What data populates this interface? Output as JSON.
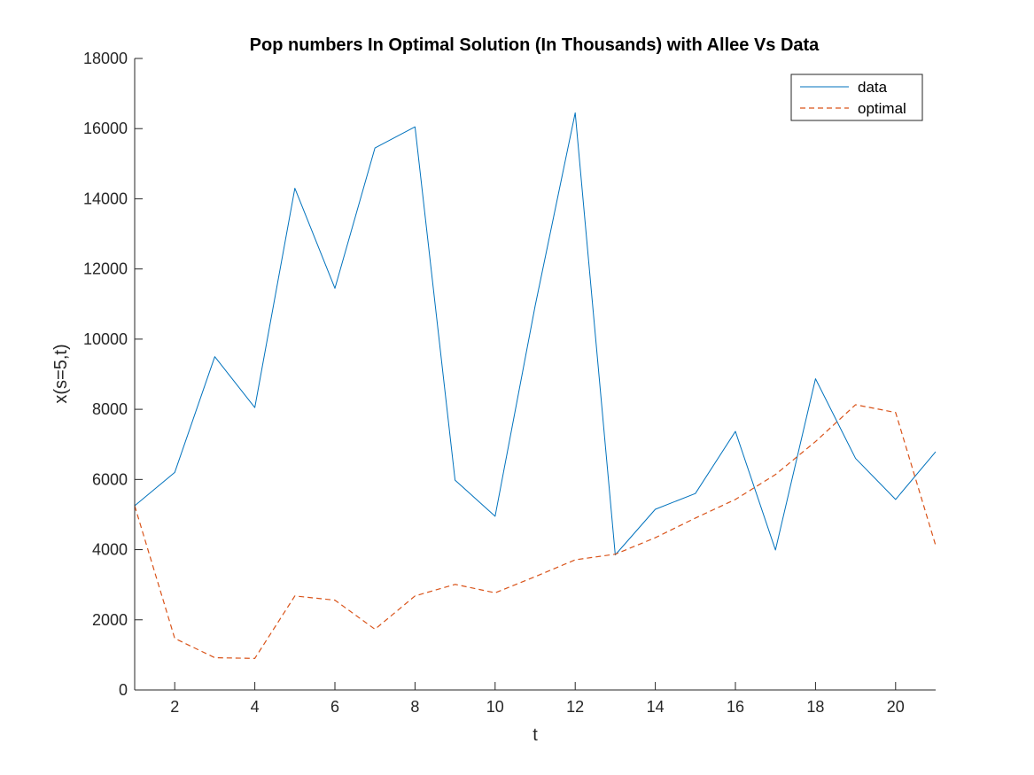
{
  "chart_data": {
    "type": "line",
    "title": "Pop numbers In Optimal Solution (In Thousands) with Allee Vs Data",
    "xlabel": "t",
    "ylabel": "x(s=5,t)",
    "xlim": [
      1,
      21
    ],
    "ylim": [
      0,
      18000
    ],
    "xticks": [
      2,
      4,
      6,
      8,
      10,
      12,
      14,
      16,
      18,
      20
    ],
    "yticks": [
      0,
      2000,
      4000,
      6000,
      8000,
      10000,
      12000,
      14000,
      16000,
      18000
    ],
    "grid": false,
    "legend_position": "top-right",
    "x": [
      1,
      2,
      3,
      4,
      5,
      6,
      7,
      8,
      9,
      10,
      11,
      12,
      13,
      14,
      15,
      16,
      17,
      18,
      19,
      20,
      21
    ],
    "series": [
      {
        "name": "data",
        "color": "#0072BD",
        "style": "solid",
        "values": [
          5250,
          6200,
          9500,
          8050,
          14300,
          11450,
          15450,
          16050,
          5980,
          4950,
          10950,
          16450,
          3850,
          5150,
          5600,
          7370,
          3990,
          8870,
          6600,
          5430,
          6790
        ]
      },
      {
        "name": "optimal",
        "color": "#D95319",
        "style": "dashed",
        "values": [
          5250,
          1470,
          920,
          900,
          2680,
          2560,
          1730,
          2680,
          3010,
          2770,
          3230,
          3710,
          3870,
          4340,
          4900,
          5430,
          6140,
          7080,
          8130,
          7910,
          4120
        ]
      }
    ]
  }
}
